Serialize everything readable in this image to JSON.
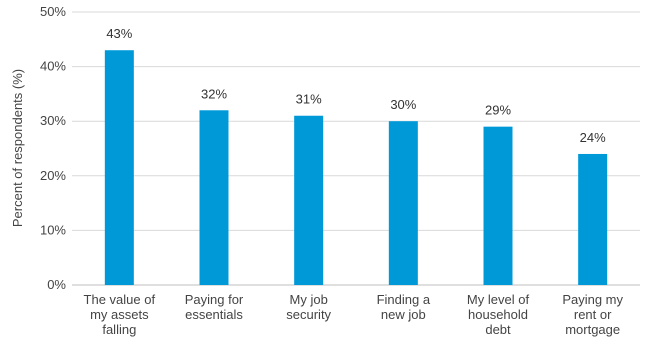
{
  "chart_data": {
    "type": "bar",
    "title": "",
    "xlabel": "",
    "ylabel": "Percent of respondents (%)",
    "ylim": [
      0,
      50
    ],
    "yticks": [
      0,
      10,
      20,
      30,
      40,
      50
    ],
    "ytick_labels": [
      "0%",
      "10%",
      "20%",
      "30%",
      "40%",
      "50%"
    ],
    "grid": true,
    "legend": "none",
    "bar_color": "#0099d8",
    "grid_color": "#d9d9d9",
    "categories": [
      "The value of my assets falling",
      "Paying for essentials",
      "My job security",
      "Finding a new job",
      "My level of household debt",
      "Paying my rent or mortgage"
    ],
    "category_lines": [
      [
        "The value of",
        "my assets",
        "falling"
      ],
      [
        "Paying for",
        "essentials"
      ],
      [
        "My job",
        "security"
      ],
      [
        "Finding a",
        "new job"
      ],
      [
        "My level of",
        "household",
        "debt"
      ],
      [
        "Paying my",
        "rent or",
        "mortgage"
      ]
    ],
    "values": [
      43,
      32,
      31,
      30,
      29,
      24
    ],
    "data_labels": [
      "43%",
      "32%",
      "31%",
      "30%",
      "29%",
      "24%"
    ]
  }
}
